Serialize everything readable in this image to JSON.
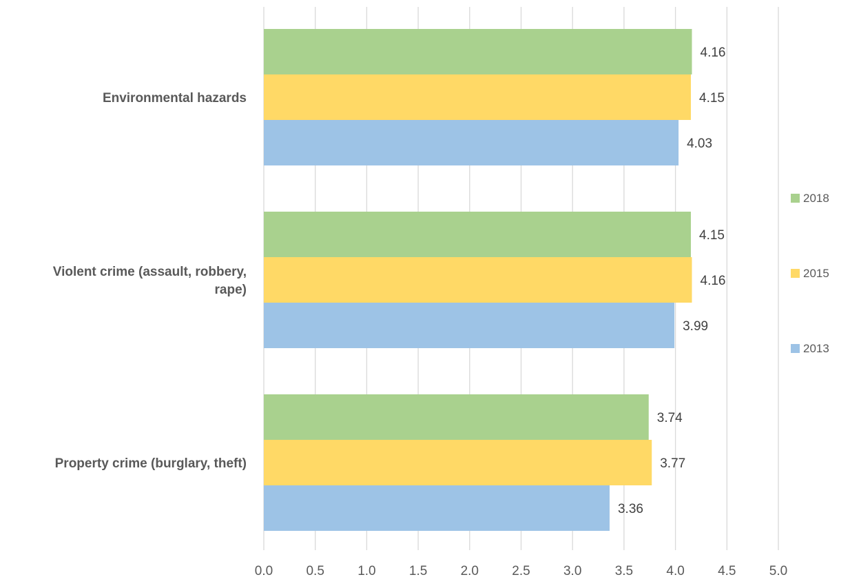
{
  "chart_data": {
    "type": "bar",
    "orientation": "horizontal",
    "categories": [
      "Environmental hazards",
      "Violent crime (assault, robbery, rape)",
      "Property crime (burglary, theft)"
    ],
    "category_lines": [
      [
        "Environmental hazards"
      ],
      [
        "Violent crime (assault, robbery,",
        "rape)"
      ],
      [
        "Property crime (burglary, theft)"
      ]
    ],
    "series": [
      {
        "name": "2018",
        "color": "#a9d18e",
        "values": [
          4.16,
          4.15,
          3.74
        ]
      },
      {
        "name": "2015",
        "color": "#ffd966",
        "values": [
          4.15,
          4.16,
          3.77
        ]
      },
      {
        "name": "2013",
        "color": "#9dc3e6",
        "values": [
          4.03,
          3.99,
          3.36
        ]
      }
    ],
    "xlim": [
      0,
      5
    ],
    "xticks": [
      "0.0",
      "0.5",
      "1.0",
      "1.5",
      "2.0",
      "2.5",
      "3.0",
      "3.5",
      "4.0",
      "4.5",
      "5.0"
    ],
    "grid": true,
    "legend_position": "right",
    "data_labels": true
  }
}
